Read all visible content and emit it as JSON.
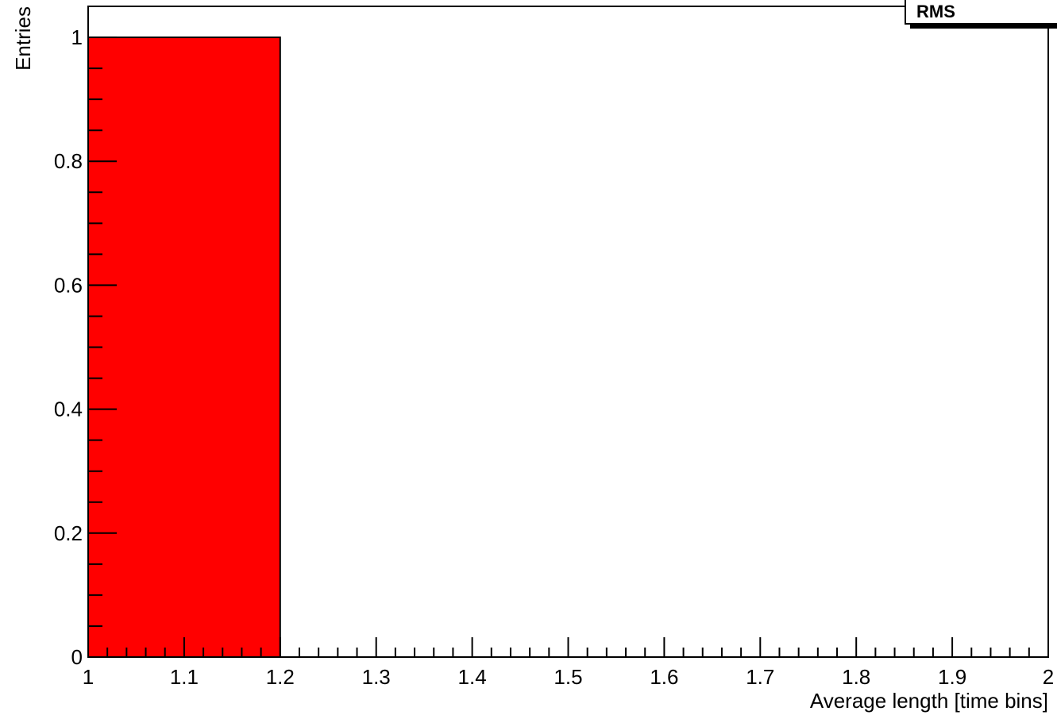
{
  "chart_data": {
    "type": "bar",
    "histogram": true,
    "bins": [
      {
        "x_low": 1.0,
        "x_high": 1.2,
        "value": 1
      }
    ],
    "bar_color": "#ff0000",
    "edge_color": "#000000",
    "xlabel": "Average length [time bins]",
    "ylabel": "Entries",
    "xlim": [
      1.0,
      2.0
    ],
    "ylim": [
      0,
      1.05
    ],
    "x_ticks": [
      {
        "value": 1.0,
        "label": "1"
      },
      {
        "value": 1.1,
        "label": "1.1"
      },
      {
        "value": 1.2,
        "label": "1.2"
      },
      {
        "value": 1.3,
        "label": "1.3"
      },
      {
        "value": 1.4,
        "label": "1.4"
      },
      {
        "value": 1.5,
        "label": "1.5"
      },
      {
        "value": 1.6,
        "label": "1.6"
      },
      {
        "value": 1.7,
        "label": "1.7"
      },
      {
        "value": 1.8,
        "label": "1.8"
      },
      {
        "value": 1.9,
        "label": "1.9"
      },
      {
        "value": 2.0,
        "label": "2"
      }
    ],
    "y_ticks": [
      {
        "value": 0,
        "label": "0"
      },
      {
        "value": 0.2,
        "label": "0.2"
      },
      {
        "value": 0.4,
        "label": "0.4"
      },
      {
        "value": 0.6,
        "label": "0.6"
      },
      {
        "value": 0.8,
        "label": "0.8"
      },
      {
        "value": 1,
        "label": "1"
      }
    ],
    "grid": false,
    "legend": "none",
    "stats_box": {
      "placement": "top-right",
      "label": "RMS"
    }
  }
}
